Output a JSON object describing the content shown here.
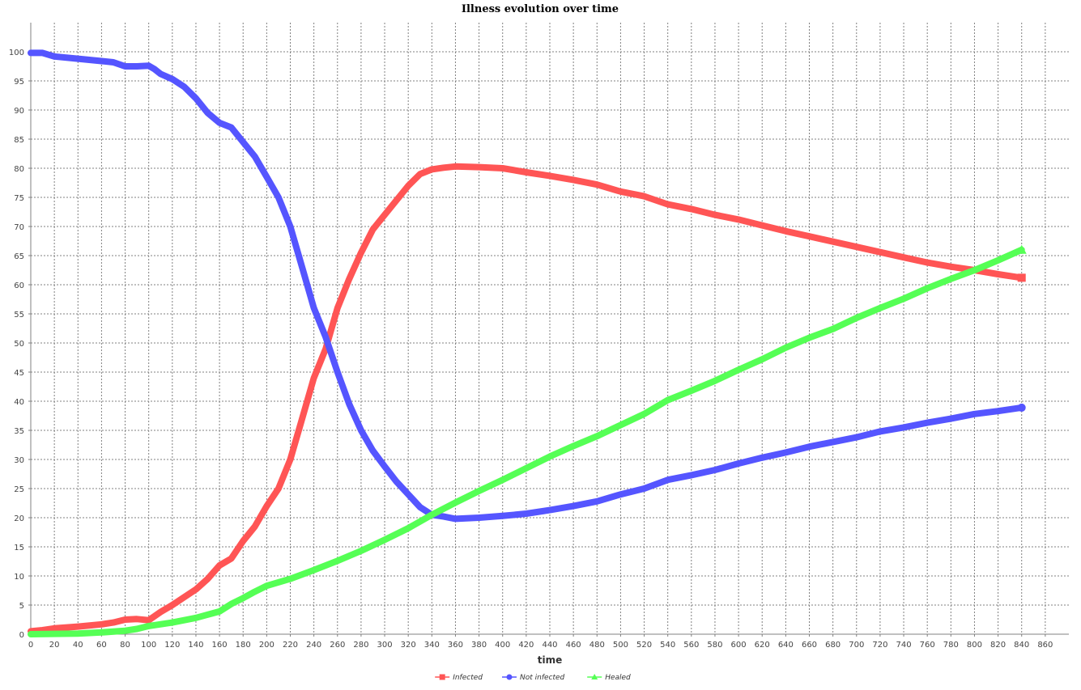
{
  "chart_data": {
    "type": "line",
    "title": "Illness evolution over time",
    "xlabel": "time",
    "ylabel": "",
    "xlim": [
      0,
      880
    ],
    "ylim": [
      0,
      105
    ],
    "x_ticks": [
      0,
      20,
      40,
      60,
      80,
      100,
      120,
      140,
      160,
      180,
      200,
      220,
      240,
      260,
      280,
      300,
      320,
      340,
      360,
      380,
      400,
      420,
      440,
      460,
      480,
      500,
      520,
      540,
      560,
      580,
      600,
      620,
      640,
      660,
      680,
      700,
      720,
      740,
      760,
      780,
      800,
      820,
      840,
      860
    ],
    "y_ticks": [
      0,
      5,
      10,
      15,
      20,
      25,
      30,
      35,
      40,
      45,
      50,
      55,
      60,
      65,
      70,
      75,
      80,
      85,
      90,
      95,
      100
    ],
    "grid": true,
    "legend_position": "bottom-center",
    "series": [
      {
        "name": "Infected",
        "color": "#ff5555",
        "marker": "square",
        "points": [
          [
            0,
            0.5
          ],
          [
            10,
            0.7
          ],
          [
            20,
            1
          ],
          [
            40,
            1.3
          ],
          [
            60,
            1.7
          ],
          [
            70,
            2
          ],
          [
            80,
            2.5
          ],
          [
            90,
            2.6
          ],
          [
            100,
            2.4
          ],
          [
            110,
            3.8
          ],
          [
            120,
            5
          ],
          [
            140,
            7.7
          ],
          [
            150,
            9.5
          ],
          [
            160,
            11.8
          ],
          [
            170,
            13
          ],
          [
            180,
            16
          ],
          [
            190,
            18.5
          ],
          [
            200,
            22
          ],
          [
            210,
            25
          ],
          [
            220,
            30
          ],
          [
            230,
            37
          ],
          [
            240,
            44
          ],
          [
            250,
            49
          ],
          [
            260,
            56
          ],
          [
            270,
            61
          ],
          [
            280,
            65.5
          ],
          [
            290,
            69.5
          ],
          [
            300,
            72
          ],
          [
            310,
            74.5
          ],
          [
            320,
            77
          ],
          [
            330,
            79
          ],
          [
            340,
            79.8
          ],
          [
            350,
            80.1
          ],
          [
            360,
            80.3
          ],
          [
            380,
            80.2
          ],
          [
            400,
            80
          ],
          [
            420,
            79.3
          ],
          [
            440,
            78.7
          ],
          [
            460,
            78
          ],
          [
            480,
            77.2
          ],
          [
            500,
            76
          ],
          [
            520,
            75.2
          ],
          [
            540,
            73.8
          ],
          [
            560,
            73
          ],
          [
            580,
            72
          ],
          [
            600,
            71.2
          ],
          [
            620,
            70.2
          ],
          [
            640,
            69.2
          ],
          [
            660,
            68.3
          ],
          [
            680,
            67.4
          ],
          [
            700,
            66.5
          ],
          [
            720,
            65.6
          ],
          [
            740,
            64.7
          ],
          [
            760,
            63.8
          ],
          [
            780,
            63.1
          ],
          [
            800,
            62.5
          ],
          [
            820,
            61.8
          ],
          [
            840,
            61.2
          ]
        ]
      },
      {
        "name": "Not infected",
        "color": "#5555ff",
        "marker": "circle",
        "points": [
          [
            0,
            99.8
          ],
          [
            10,
            99.8
          ],
          [
            20,
            99.2
          ],
          [
            40,
            98.8
          ],
          [
            60,
            98.4
          ],
          [
            70,
            98.2
          ],
          [
            80,
            97.5
          ],
          [
            90,
            97.5
          ],
          [
            100,
            97.6
          ],
          [
            105,
            97
          ],
          [
            110,
            96.2
          ],
          [
            120,
            95.3
          ],
          [
            130,
            94
          ],
          [
            140,
            92
          ],
          [
            150,
            89.5
          ],
          [
            160,
            87.8
          ],
          [
            170,
            87
          ],
          [
            180,
            84.5
          ],
          [
            190,
            82
          ],
          [
            200,
            78.5
          ],
          [
            210,
            75
          ],
          [
            220,
            70
          ],
          [
            230,
            63
          ],
          [
            240,
            56
          ],
          [
            250,
            51
          ],
          [
            260,
            45
          ],
          [
            270,
            39.5
          ],
          [
            280,
            35
          ],
          [
            290,
            31.5
          ],
          [
            300,
            28.8
          ],
          [
            310,
            26.2
          ],
          [
            320,
            24
          ],
          [
            330,
            21.8
          ],
          [
            340,
            20.5
          ],
          [
            350,
            20.2
          ],
          [
            360,
            19.8
          ],
          [
            380,
            20
          ],
          [
            400,
            20.3
          ],
          [
            420,
            20.7
          ],
          [
            440,
            21.3
          ],
          [
            460,
            22
          ],
          [
            480,
            22.8
          ],
          [
            500,
            24
          ],
          [
            520,
            25
          ],
          [
            540,
            26.5
          ],
          [
            560,
            27.3
          ],
          [
            580,
            28.2
          ],
          [
            600,
            29.3
          ],
          [
            620,
            30.3
          ],
          [
            640,
            31.2
          ],
          [
            660,
            32.2
          ],
          [
            680,
            33
          ],
          [
            700,
            33.8
          ],
          [
            720,
            34.8
          ],
          [
            740,
            35.5
          ],
          [
            760,
            36.3
          ],
          [
            780,
            37
          ],
          [
            800,
            37.8
          ],
          [
            820,
            38.3
          ],
          [
            840,
            38.9
          ]
        ]
      },
      {
        "name": "Healed",
        "color": "#55ff55",
        "marker": "triangle",
        "points": [
          [
            0,
            0
          ],
          [
            40,
            0.1
          ],
          [
            60,
            0.3
          ],
          [
            80,
            0.6
          ],
          [
            90,
            0.9
          ],
          [
            100,
            1.4
          ],
          [
            120,
            2
          ],
          [
            140,
            2.8
          ],
          [
            160,
            3.9
          ],
          [
            170,
            5.2
          ],
          [
            180,
            6.2
          ],
          [
            190,
            7.3
          ],
          [
            200,
            8.3
          ],
          [
            220,
            9.5
          ],
          [
            240,
            11
          ],
          [
            260,
            12.6
          ],
          [
            280,
            14.3
          ],
          [
            300,
            16.2
          ],
          [
            320,
            18.2
          ],
          [
            340,
            20.5
          ],
          [
            360,
            22.6
          ],
          [
            380,
            24.6
          ],
          [
            400,
            26.5
          ],
          [
            420,
            28.5
          ],
          [
            440,
            30.5
          ],
          [
            460,
            32.3
          ],
          [
            480,
            34
          ],
          [
            500,
            35.9
          ],
          [
            520,
            37.8
          ],
          [
            540,
            40.2
          ],
          [
            560,
            41.8
          ],
          [
            580,
            43.5
          ],
          [
            600,
            45.4
          ],
          [
            620,
            47.2
          ],
          [
            640,
            49.2
          ],
          [
            660,
            50.9
          ],
          [
            680,
            52.4
          ],
          [
            700,
            54.3
          ],
          [
            720,
            56
          ],
          [
            740,
            57.6
          ],
          [
            760,
            59.4
          ],
          [
            780,
            61
          ],
          [
            800,
            62.5
          ],
          [
            820,
            64.2
          ],
          [
            840,
            66
          ]
        ]
      }
    ]
  }
}
